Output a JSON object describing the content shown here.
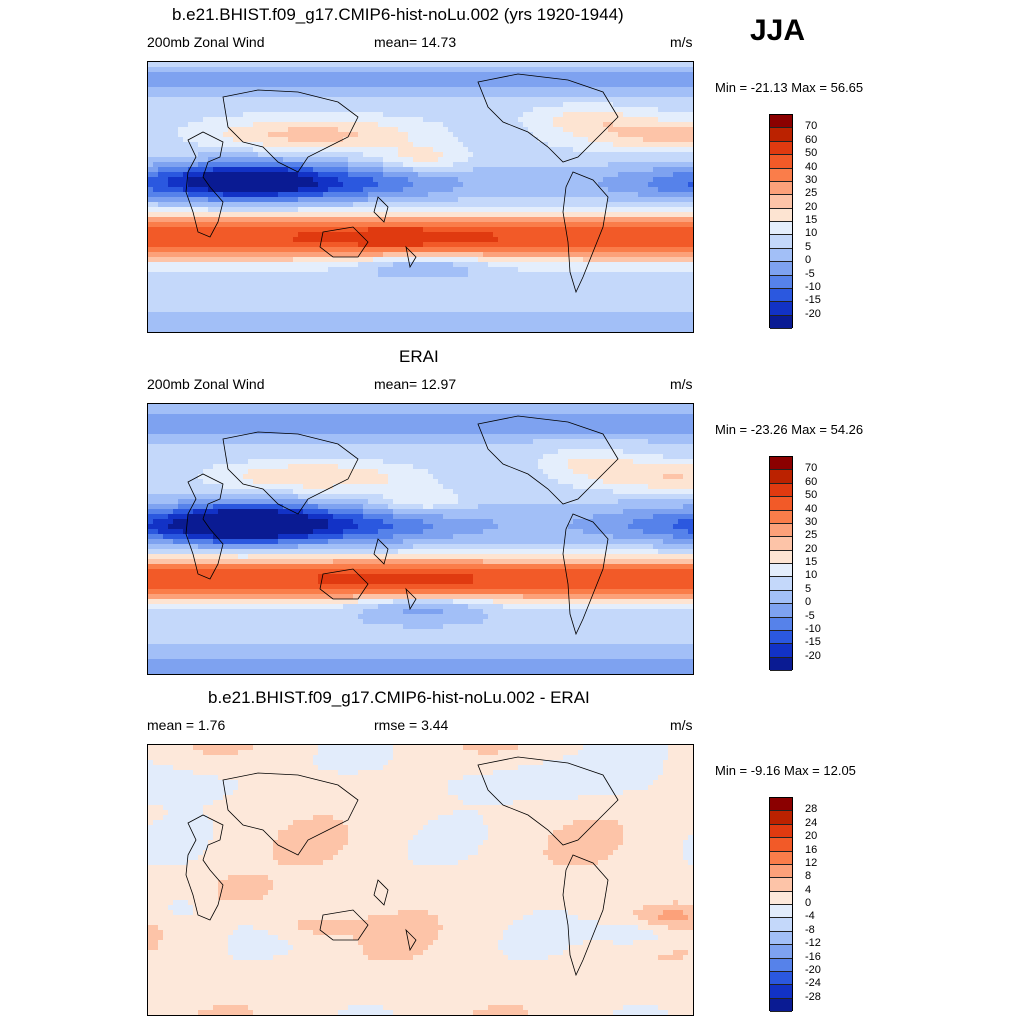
{
  "season": "JJA",
  "panels": [
    {
      "title": "b.e21.BHIST.f09_g17.CMIP6-hist-noLu.002 (yrs 1920-1944)",
      "left_label": "200mb Zonal Wind",
      "center_label": "mean=  14.73",
      "units": "m/s",
      "minmax": "Min = -21.13 Max =  56.65",
      "colorbar": {
        "levels": [
          "70",
          "60",
          "50",
          "40",
          "30",
          "25",
          "20",
          "15",
          "10",
          "5",
          "0",
          "-5",
          "-10",
          "-15",
          "-20"
        ],
        "colors": [
          "#8b0000",
          "#bb2200",
          "#e03a10",
          "#f25a28",
          "#fa7d4a",
          "#fca17a",
          "#fdc4a8",
          "#fde4d2",
          "#e4eefc",
          "#c4d8fa",
          "#a2bff7",
          "#7ea2f0",
          "#5682ea",
          "#2b58df",
          "#1232c6",
          "#0a1b93"
        ]
      },
      "field": "model"
    },
    {
      "title": "ERAI",
      "left_label": "200mb Zonal Wind",
      "center_label": "mean=  12.97",
      "units": "m/s",
      "minmax": "Min = -23.26 Max =  54.26",
      "colorbar": {
        "levels": [
          "70",
          "60",
          "50",
          "40",
          "30",
          "25",
          "20",
          "15",
          "10",
          "5",
          "0",
          "-5",
          "-10",
          "-15",
          "-20"
        ],
        "colors": [
          "#8b0000",
          "#bb2200",
          "#e03a10",
          "#f25a28",
          "#fa7d4a",
          "#fca17a",
          "#fdc4a8",
          "#fde4d2",
          "#e4eefc",
          "#c4d8fa",
          "#a2bff7",
          "#7ea2f0",
          "#5682ea",
          "#2b58df",
          "#1232c6",
          "#0a1b93"
        ]
      },
      "field": "obs"
    },
    {
      "title": "b.e21.BHIST.f09_g17.CMIP6-hist-noLu.002 - ERAI",
      "left_label": "mean =    1.76",
      "center_label": "rmse =    3.44",
      "units": "m/s",
      "minmax": "Min =  -9.16 Max =  12.05",
      "colorbar": {
        "levels": [
          "28",
          "24",
          "20",
          "16",
          "12",
          "8",
          "4",
          "0",
          "-4",
          "-8",
          "-12",
          "-16",
          "-20",
          "-24",
          "-28"
        ],
        "colors": [
          "#8b0000",
          "#bb2200",
          "#e03a10",
          "#f25a28",
          "#fa7d4a",
          "#fca17a",
          "#fdc4a8",
          "#fde8da",
          "#e2ecfb",
          "#c4d8fa",
          "#a2bff7",
          "#7ea2f0",
          "#5682ea",
          "#2b58df",
          "#1232c6",
          "#0a1b93"
        ]
      },
      "field": "diff"
    }
  ]
}
